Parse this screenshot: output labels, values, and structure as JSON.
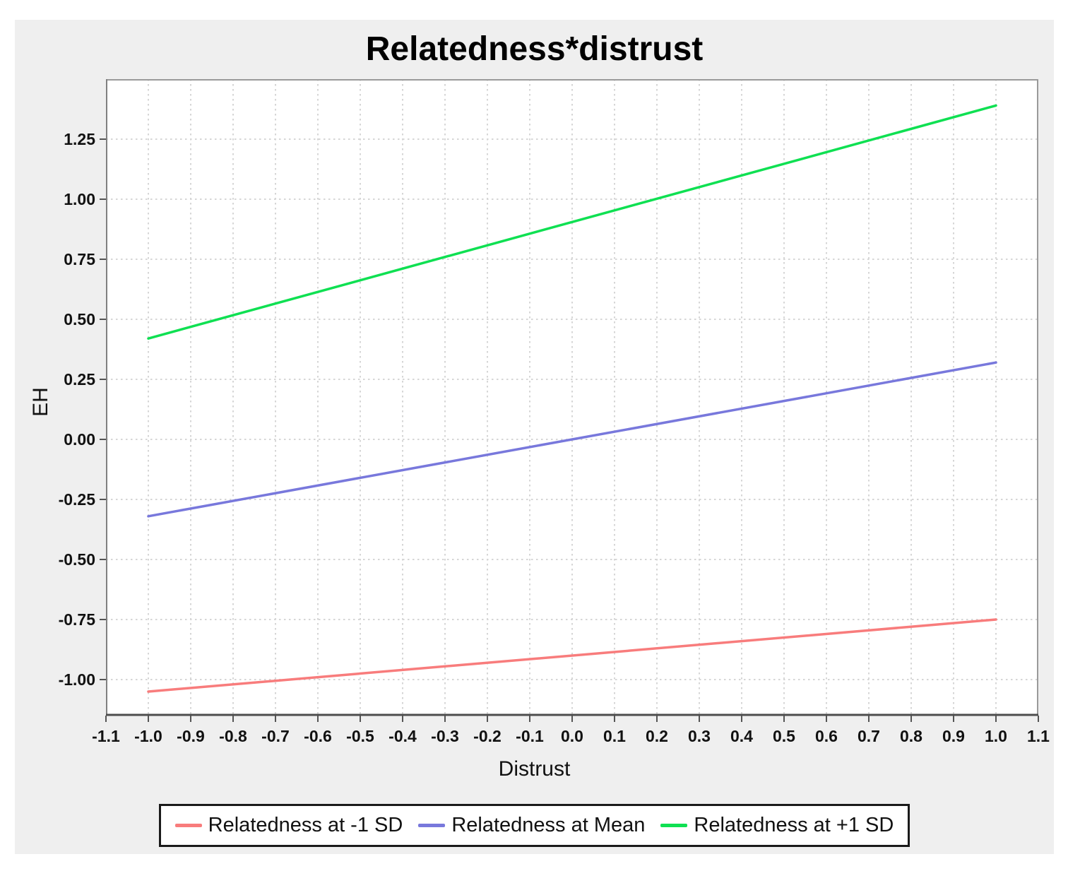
{
  "chart_data": {
    "type": "line",
    "title": "Relatedness*distrust",
    "xlabel": "Distrust",
    "ylabel": "EH",
    "xlim": [
      -1.1,
      1.1
    ],
    "ylim": [
      -1.15,
      1.5
    ],
    "grid": "dotted",
    "legend_position": "bottom",
    "x_ticks": [
      -1.1,
      -1.0,
      -0.9,
      -0.8,
      -0.7,
      -0.6,
      -0.5,
      -0.4,
      -0.3,
      -0.2,
      -0.1,
      0.0,
      0.1,
      0.2,
      0.3,
      0.4,
      0.5,
      0.6,
      0.7,
      0.8,
      0.9,
      1.0,
      1.1
    ],
    "x_tick_labels": [
      "-1.1",
      "-1.0",
      "-0.9",
      "-0.8",
      "-0.7",
      "-0.6",
      "-0.5",
      "-0.4",
      "-0.3",
      "-0.2",
      "-0.1",
      "0.0",
      "0.1",
      "0.2",
      "0.3",
      "0.4",
      "0.5",
      "0.6",
      "0.7",
      "0.8",
      "0.9",
      "1.0",
      "1.1"
    ],
    "y_ticks": [
      1.25,
      1.0,
      0.75,
      0.5,
      0.25,
      0.0,
      -0.25,
      -0.5,
      -0.75,
      -1.0
    ],
    "y_tick_labels": [
      "1.25",
      "1.00",
      "0.75",
      "0.50",
      "0.25",
      "0.00",
      "-0.25",
      "-0.50",
      "-0.75",
      "-1.00"
    ],
    "series": [
      {
        "name": "Relatedness at -1 SD",
        "color": "#F87C7C",
        "points": [
          [
            -1.0,
            -1.05
          ],
          [
            1.0,
            -0.75
          ]
        ]
      },
      {
        "name": "Relatedness at Mean",
        "color": "#7878DC",
        "points": [
          [
            -1.0,
            -0.32
          ],
          [
            1.0,
            0.32
          ]
        ]
      },
      {
        "name": "Relatedness at +1 SD",
        "color": "#0FE052",
        "points": [
          [
            -1.0,
            0.42
          ],
          [
            1.0,
            1.39
          ]
        ]
      }
    ]
  },
  "colors": {
    "panel_bg": "#EFEFEF",
    "plot_bg": "#FFFFFF",
    "grid": "#D6D6D6",
    "frame": "#9A9A9A",
    "left_axis": "#808080",
    "bottom_axis": "#4D4D4D",
    "tick": "#555555",
    "text": "#111111"
  }
}
